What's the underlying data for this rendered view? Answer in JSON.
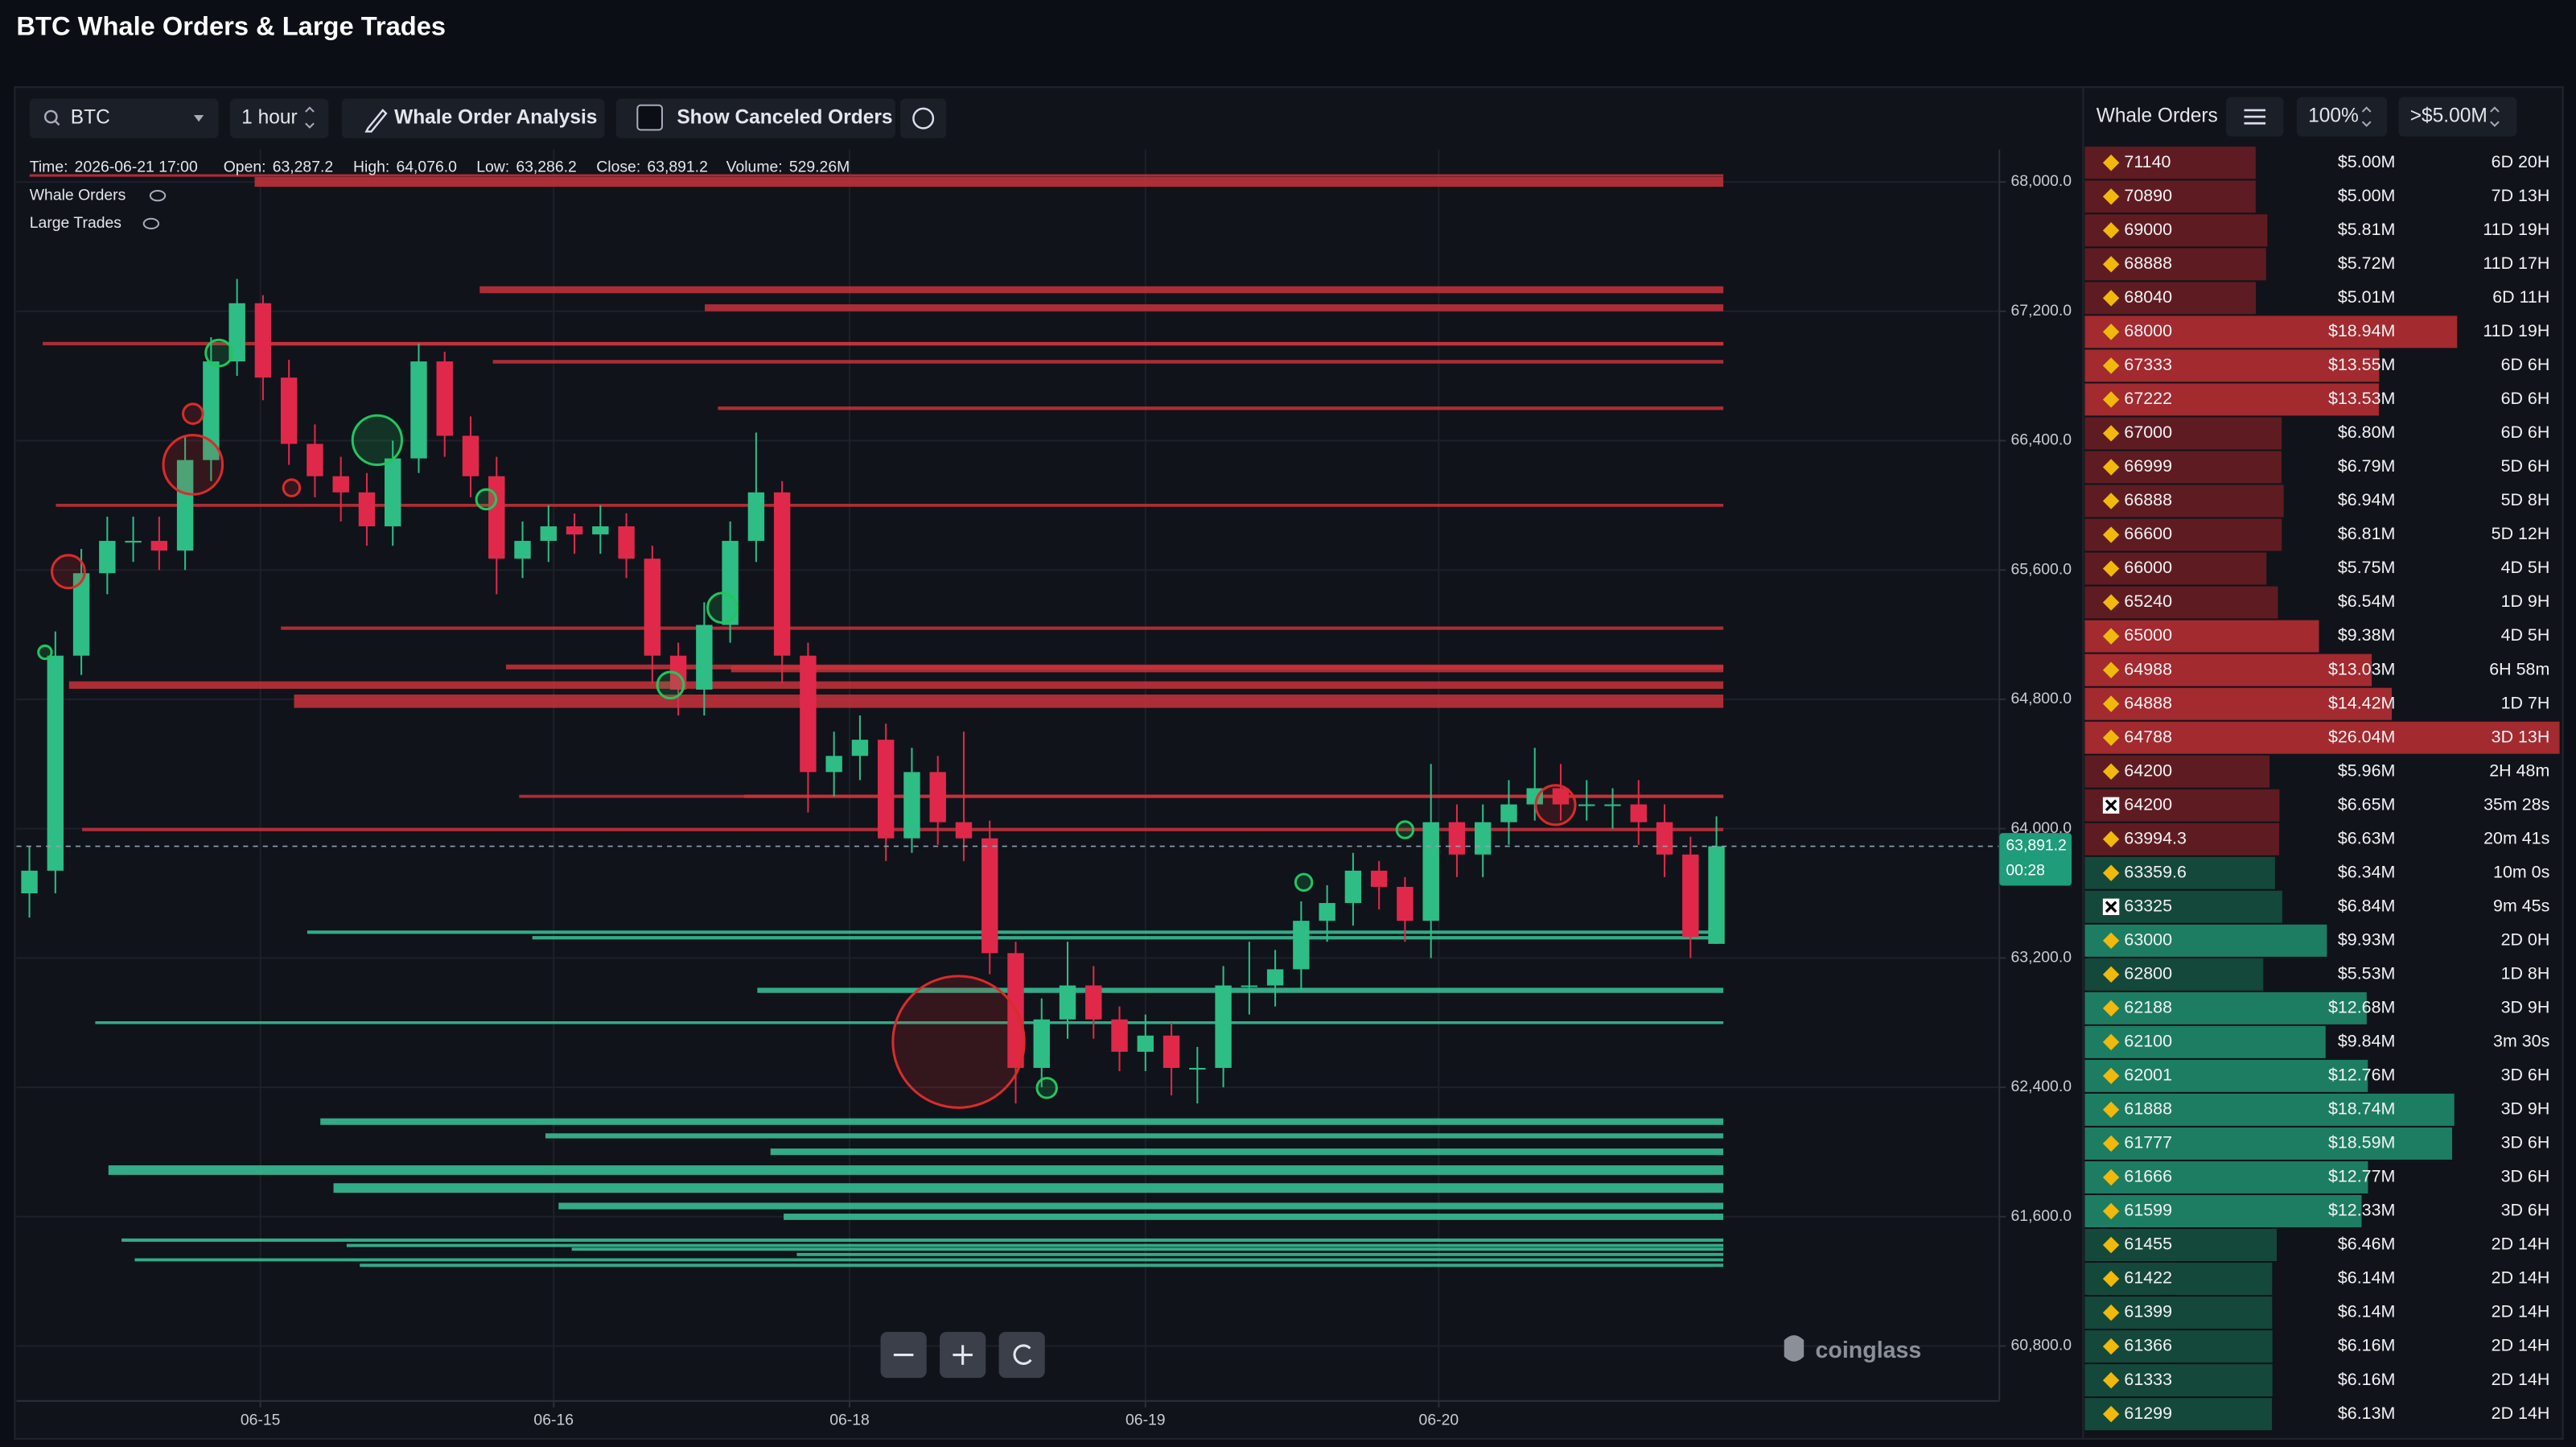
{
  "title": "BTC Whale Orders & Large Trades",
  "toolbar": {
    "symbol": "BTC",
    "interval": "1 hour",
    "analysis": "Whale Order Analysis",
    "canceled": "Show Canceled Orders"
  },
  "info": [
    {
      "caption": "Time:",
      "text": "2026-06-21 17:00"
    },
    {
      "caption": "Open:",
      "text": "63,287.2"
    },
    {
      "caption": "High:",
      "text": "64,076.0"
    },
    {
      "caption": "Low:",
      "text": "63,286.2"
    },
    {
      "caption": "Close:",
      "text": "63,891.2"
    },
    {
      "caption": "Volume:",
      "text": "529.26M"
    }
  ],
  "legend": [
    "Whale Orders",
    "Large Trades"
  ],
  "watermark": "coinglass",
  "chart_data": {
    "type": "candlestick",
    "up_color": "#2ebd85",
    "down_color": "#e0294a",
    "grid": true,
    "open": [
      63600,
      63740,
      65070,
      65580,
      65780,
      65780,
      65720,
      66280,
      66890,
      67250,
      66790,
      66380,
      66180,
      66080,
      65870,
      66290,
      66890,
      66430,
      66180,
      65670,
      65780,
      65870,
      65820,
      65870,
      65670,
      65070,
      64860,
      65260,
      65780,
      66080,
      65070,
      64350,
      64450,
      64550,
      63940,
      64350,
      64040,
      63940,
      63230,
      62520,
      62820,
      63030,
      62820,
      62620,
      62720,
      62520,
      62520,
      63030,
      63030,
      63130,
      63430,
      63540,
      63740,
      63640,
      63430,
      64040,
      63840,
      64040,
      64150,
      64250,
      64150,
      64150,
      64150,
      64040,
      63840,
      63287.2
    ],
    "high": [
      63890,
      65220,
      65730,
      65930,
      65930,
      65930,
      66430,
      67040,
      67400,
      67300,
      66900,
      66500,
      66300,
      66200,
      66400,
      67000,
      66950,
      66550,
      66300,
      65900,
      66000,
      65950,
      66000,
      65950,
      65750,
      65150,
      65400,
      65900,
      66450,
      66150,
      65150,
      64600,
      64700,
      64650,
      64500,
      64450,
      64600,
      64050,
      63300,
      62950,
      63300,
      63150,
      62900,
      62850,
      62800,
      62650,
      63150,
      63300,
      63250,
      63550,
      63650,
      63850,
      63800,
      63700,
      64400,
      64150,
      64150,
      64300,
      64500,
      64400,
      64300,
      64250,
      64300,
      64150,
      63950,
      64076
    ],
    "low": [
      63450,
      63600,
      64950,
      65450,
      65650,
      65600,
      65600,
      66150,
      66800,
      66650,
      66250,
      66050,
      65900,
      65750,
      65750,
      66200,
      66300,
      66050,
      65450,
      65550,
      65650,
      65700,
      65700,
      65550,
      64900,
      64700,
      64700,
      65150,
      65650,
      64900,
      64100,
      64200,
      64300,
      63800,
      63850,
      63900,
      63800,
      63100,
      62300,
      62400,
      62700,
      62700,
      62500,
      62500,
      62350,
      62300,
      62400,
      62850,
      62900,
      63000,
      63300,
      63400,
      63500,
      63300,
      63200,
      63700,
      63700,
      63900,
      64050,
      64050,
      64050,
      64000,
      63900,
      63700,
      63200,
      63286.2
    ],
    "close": [
      63740,
      65070,
      65580,
      65780,
      65780,
      65720,
      66280,
      66890,
      67250,
      66790,
      66380,
      66180,
      66080,
      65870,
      66290,
      66890,
      66430,
      66180,
      65670,
      65780,
      65870,
      65820,
      65870,
      65670,
      65070,
      64860,
      65260,
      65780,
      66080,
      65070,
      64350,
      64450,
      64550,
      63940,
      64350,
      64040,
      63940,
      63230,
      62520,
      62820,
      63030,
      62820,
      62620,
      62720,
      62520,
      62520,
      63030,
      63030,
      63130,
      63430,
      63540,
      63740,
      63640,
      63430,
      64040,
      63840,
      64040,
      64150,
      64250,
      64150,
      64150,
      64150,
      64040,
      63840,
      63330,
      63891.2
    ],
    "xlim": [
      -0.5,
      75.9
    ],
    "ylim": [
      60460,
      68200
    ],
    "xticks": [
      {
        "value": 8.9,
        "label": "06-15"
      },
      {
        "value": 20.2,
        "label": "06-16"
      },
      {
        "value": 31.6,
        "label": "06-18"
      },
      {
        "value": 43,
        "label": "06-19"
      },
      {
        "value": 54.3,
        "label": "06-20"
      }
    ],
    "yticks": [
      {
        "value": 68000,
        "label": "68,000.0"
      },
      {
        "value": 67200,
        "label": "67,200.0"
      },
      {
        "value": 66400,
        "label": "66,400.0"
      },
      {
        "value": 65600,
        "label": "65,600.0"
      },
      {
        "value": 64800,
        "label": "64,800.0"
      },
      {
        "value": 64000,
        "label": "64,000.0"
      },
      {
        "value": 63200,
        "label": "63,200.0"
      },
      {
        "value": 62400,
        "label": "62,400.0"
      },
      {
        "value": 61600,
        "label": "61,600.0"
      },
      {
        "value": 60800,
        "label": "60,800.0"
      }
    ],
    "current_price": {
      "value": 63891.2,
      "label": "63,891.2"
    },
    "countdown": "00:28",
    "large_trades": [
      {
        "color": "#22c55e",
        "x": [
          13.4,
          7.3,
          17.6,
          26.7,
          24.7,
          0.6,
          39.2,
          49.1,
          53
        ],
        "y": [
          66403,
          66942,
          66037,
          65366,
          64888,
          65091,
          62396,
          63668,
          63993
        ],
        "sizes": [
          15,
          8,
          6,
          9,
          8,
          4,
          6,
          5,
          5
        ]
      },
      {
        "color": "#d92b2b",
        "x": [
          6.3,
          1.5,
          35.8,
          58.8,
          6.3,
          10.1
        ],
        "y": [
          66251,
          65590,
          62681,
          64146,
          66566,
          66108
        ],
        "sizes": [
          18,
          10,
          40,
          12,
          6,
          5
        ]
      }
    ]
  },
  "order_panel": {
    "title": "Whale Orders",
    "depth": "100%",
    "min_size": ">$5.00M",
    "rows": [
      {
        "price": 71140,
        "amount": 5.0,
        "amount_label": "$5.00M",
        "age": "6D 20H"
      },
      {
        "price": 70890,
        "amount": 5.0,
        "amount_label": "$5.00M",
        "age": "7D 13H"
      },
      {
        "price": 69000,
        "amount": 5.81,
        "amount_label": "$5.81M",
        "age": "11D 19H"
      },
      {
        "price": 68888,
        "amount": 5.72,
        "amount_label": "$5.72M",
        "age": "11D 17H"
      },
      {
        "price": 68040,
        "amount": 5.01,
        "amount_label": "$5.01M",
        "age": "6D 11H"
      },
      {
        "price": 68000,
        "amount": 18.94,
        "amount_label": "$18.94M",
        "age": "11D 19H"
      },
      {
        "price": 67333,
        "amount": 13.55,
        "amount_label": "$13.55M",
        "age": "6D 6H"
      },
      {
        "price": 67222,
        "amount": 13.53,
        "amount_label": "$13.53M",
        "age": "6D 6H"
      },
      {
        "price": 67000,
        "amount": 6.8,
        "amount_label": "$6.80M",
        "age": "6D 6H"
      },
      {
        "price": 66999,
        "amount": 6.79,
        "amount_label": "$6.79M",
        "age": "5D 6H"
      },
      {
        "price": 66888,
        "amount": 6.94,
        "amount_label": "$6.94M",
        "age": "5D 8H"
      },
      {
        "price": 66600,
        "amount": 6.81,
        "amount_label": "$6.81M",
        "age": "5D 12H"
      },
      {
        "price": 66000,
        "amount": 5.75,
        "amount_label": "$5.75M",
        "age": "4D 5H"
      },
      {
        "price": 65240,
        "amount": 6.54,
        "amount_label": "$6.54M",
        "age": "1D 9H"
      },
      {
        "price": 65000,
        "amount": 9.38,
        "amount_label": "$9.38M",
        "age": "4D 5H"
      },
      {
        "price": 64988,
        "amount": 13.03,
        "amount_label": "$13.03M",
        "age": "6H 58m"
      },
      {
        "price": 64888,
        "amount": 14.42,
        "amount_label": "$14.42M",
        "age": "1D 7H"
      },
      {
        "price": 64788,
        "amount": 26.04,
        "amount_label": "$26.04M",
        "age": "3D 13H"
      },
      {
        "price": 64200,
        "amount": 5.96,
        "amount_label": "$5.96M",
        "age": "2H 48m"
      },
      {
        "price": 64200,
        "amount": 6.65,
        "amount_label": "$6.65M",
        "age": "35m 28s"
      },
      {
        "price": 63994.3,
        "amount": 6.63,
        "amount_label": "$6.63M",
        "age": "20m 41s"
      },
      {
        "price": 63359.6,
        "amount": 6.34,
        "amount_label": "$6.34M",
        "age": "10m 0s"
      },
      {
        "price": 63325,
        "amount": 6.84,
        "amount_label": "$6.84M",
        "age": "9m 45s"
      },
      {
        "price": 63000,
        "amount": 9.93,
        "amount_label": "$9.93M",
        "age": "2D 0H"
      },
      {
        "price": 62800,
        "amount": 5.53,
        "amount_label": "$5.53M",
        "age": "1D 8H"
      },
      {
        "price": 62188,
        "amount": 12.68,
        "amount_label": "$12.68M",
        "age": "3D 9H"
      },
      {
        "price": 62100,
        "amount": 9.84,
        "amount_label": "$9.84M",
        "age": "3m 30s"
      },
      {
        "price": 62001,
        "amount": 12.76,
        "amount_label": "$12.76M",
        "age": "3D 6H"
      },
      {
        "price": 61888,
        "amount": 18.74,
        "amount_label": "$18.74M",
        "age": "3D 9H"
      },
      {
        "price": 61777,
        "amount": 18.59,
        "amount_label": "$18.59M",
        "age": "3D 6H"
      },
      {
        "price": 61666,
        "amount": 12.77,
        "amount_label": "$12.77M",
        "age": "3D 6H"
      },
      {
        "price": 61599,
        "amount": 12.33,
        "amount_label": "$12.33M",
        "age": "3D 6H"
      },
      {
        "price": 61455,
        "amount": 6.46,
        "amount_label": "$6.46M",
        "age": "2D 14H"
      },
      {
        "price": 61422,
        "amount": 6.14,
        "amount_label": "$6.14M",
        "age": "2D 14H"
      },
      {
        "price": 61399,
        "amount": 6.14,
        "amount_label": "$6.14M",
        "age": "2D 14H"
      },
      {
        "price": 61366,
        "amount": 6.16,
        "amount_label": "$6.16M",
        "age": "2D 14H"
      },
      {
        "price": 61333,
        "amount": 6.16,
        "amount_label": "$6.16M",
        "age": "2D 14H"
      },
      {
        "price": 61299,
        "amount": 6.13,
        "amount_label": "$6.13M",
        "age": "2D 14H"
      }
    ]
  }
}
